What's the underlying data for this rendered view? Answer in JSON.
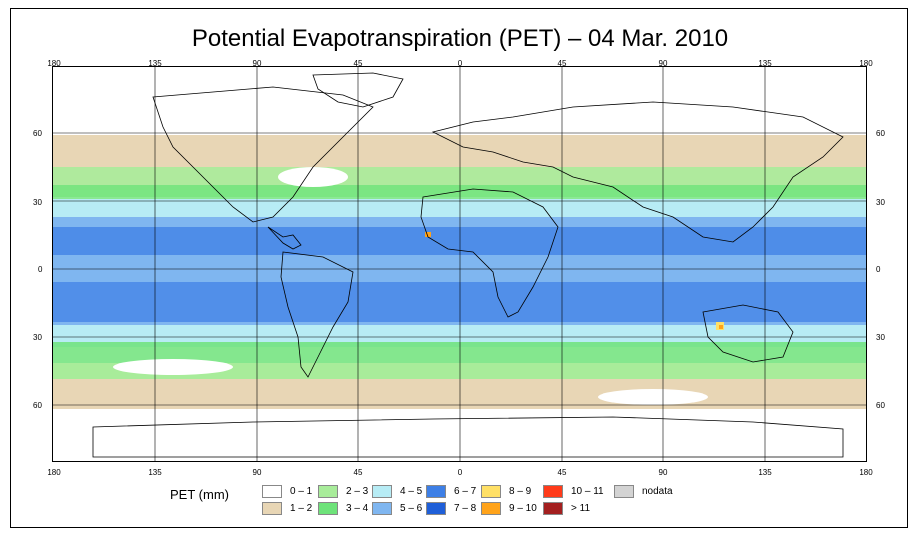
{
  "title": "Potential Evapotranspiration (PET) – 04 Mar. 2010",
  "lon_ticks": [
    "180",
    "135",
    "90",
    "45",
    "0",
    "45",
    "90",
    "135",
    "180"
  ],
  "lat_ticks": [
    "60",
    "30",
    "0",
    "30",
    "60"
  ],
  "legend_title": "PET (mm)",
  "legend": [
    {
      "label": "0 – 1",
      "color": "#ffffff"
    },
    {
      "label": "1 – 2",
      "color": "#e8d6b5"
    },
    {
      "label": "2 – 3",
      "color": "#a8ec9a"
    },
    {
      "label": "3 – 4",
      "color": "#6ee37a"
    },
    {
      "label": "4 – 5",
      "color": "#b7ecf5"
    },
    {
      "label": "5 – 6",
      "color": "#7fb6f0"
    },
    {
      "label": "6 – 7",
      "color": "#3d7fe6"
    },
    {
      "label": "7 – 8",
      "color": "#1f5fd8"
    },
    {
      "label": "8 – 9",
      "color": "#ffe066"
    },
    {
      "label": "9 – 10",
      "color": "#ffa31a"
    },
    {
      "label": "10 – 11",
      "color": "#ff3b1a"
    },
    {
      "label": "> 11",
      "color": "#a31f1f"
    },
    {
      "label": "nodata",
      "color": "#d3d3d3"
    }
  ]
}
